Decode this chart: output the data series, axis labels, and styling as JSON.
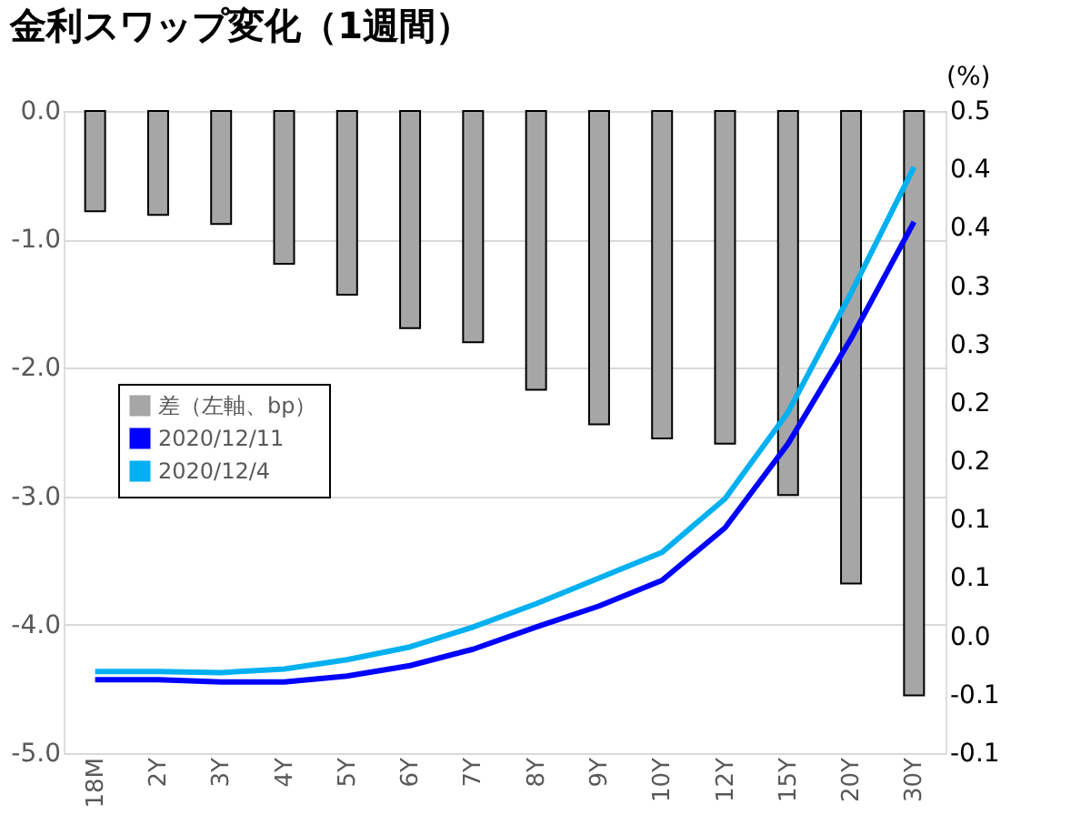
{
  "chart_data": {
    "type": "bar",
    "title": "金利スワップ変化（1週間）",
    "y2label": "(%)",
    "categories": [
      "18M",
      "2Y",
      "3Y",
      "4Y",
      "5Y",
      "6Y",
      "7Y",
      "8Y",
      "9Y",
      "10Y",
      "12Y",
      "15Y",
      "20Y",
      "30Y"
    ],
    "series": [
      {
        "name": "差（左軸、bp）",
        "color": "#a6a6a6",
        "values": [
          -0.78,
          -0.81,
          -0.88,
          -1.19,
          -1.43,
          -1.69,
          -1.8,
          -2.17,
          -2.44,
          -2.55,
          -2.59,
          -2.99,
          -3.68,
          -4.55
        ]
      },
      {
        "name": "2020/12/11",
        "type": "line",
        "axis": "y2",
        "color": "#0000ff",
        "values": [
          -0.037,
          -0.037,
          -0.039,
          -0.039,
          -0.034,
          -0.025,
          -0.011,
          0.008,
          0.026,
          0.048,
          0.093,
          0.165,
          0.255,
          0.355
        ]
      },
      {
        "name": "2020/12/4",
        "type": "line",
        "axis": "y2",
        "color": "#00b0f0",
        "values": [
          -0.03,
          -0.03,
          -0.031,
          -0.028,
          -0.02,
          -0.009,
          0.008,
          0.028,
          0.05,
          0.072,
          0.118,
          0.192,
          0.294,
          0.402
        ]
      }
    ],
    "ylim": [
      -5,
      0
    ],
    "yticks": [
      {
        "value": -5,
        "label": "-5.0"
      },
      {
        "value": -4,
        "label": "-4.0"
      },
      {
        "value": -3,
        "label": "-3.0"
      },
      {
        "value": -2,
        "label": "-2.0"
      },
      {
        "value": -1,
        "label": "-1.0"
      },
      {
        "value": 0,
        "label": "0.0"
      }
    ],
    "y2lim": [
      -0.1,
      0.45
    ],
    "y2ticks": [
      {
        "value": -0.1,
        "label": "-0.1"
      },
      {
        "value": -0.05,
        "label": "-0.1"
      },
      {
        "value": 0,
        "label": "0.0"
      },
      {
        "value": 0.05,
        "label": "0.1"
      },
      {
        "value": 0.1,
        "label": "0.1"
      },
      {
        "value": 0.15,
        "label": "0.2"
      },
      {
        "value": 0.2,
        "label": "0.2"
      },
      {
        "value": 0.25,
        "label": "0.3"
      },
      {
        "value": 0.3,
        "label": "0.3"
      },
      {
        "value": 0.35,
        "label": "0.4"
      },
      {
        "value": 0.4,
        "label": "0.4"
      },
      {
        "value": 0.45,
        "label": "0.5"
      }
    ],
    "grid": "y",
    "legend": "left"
  }
}
